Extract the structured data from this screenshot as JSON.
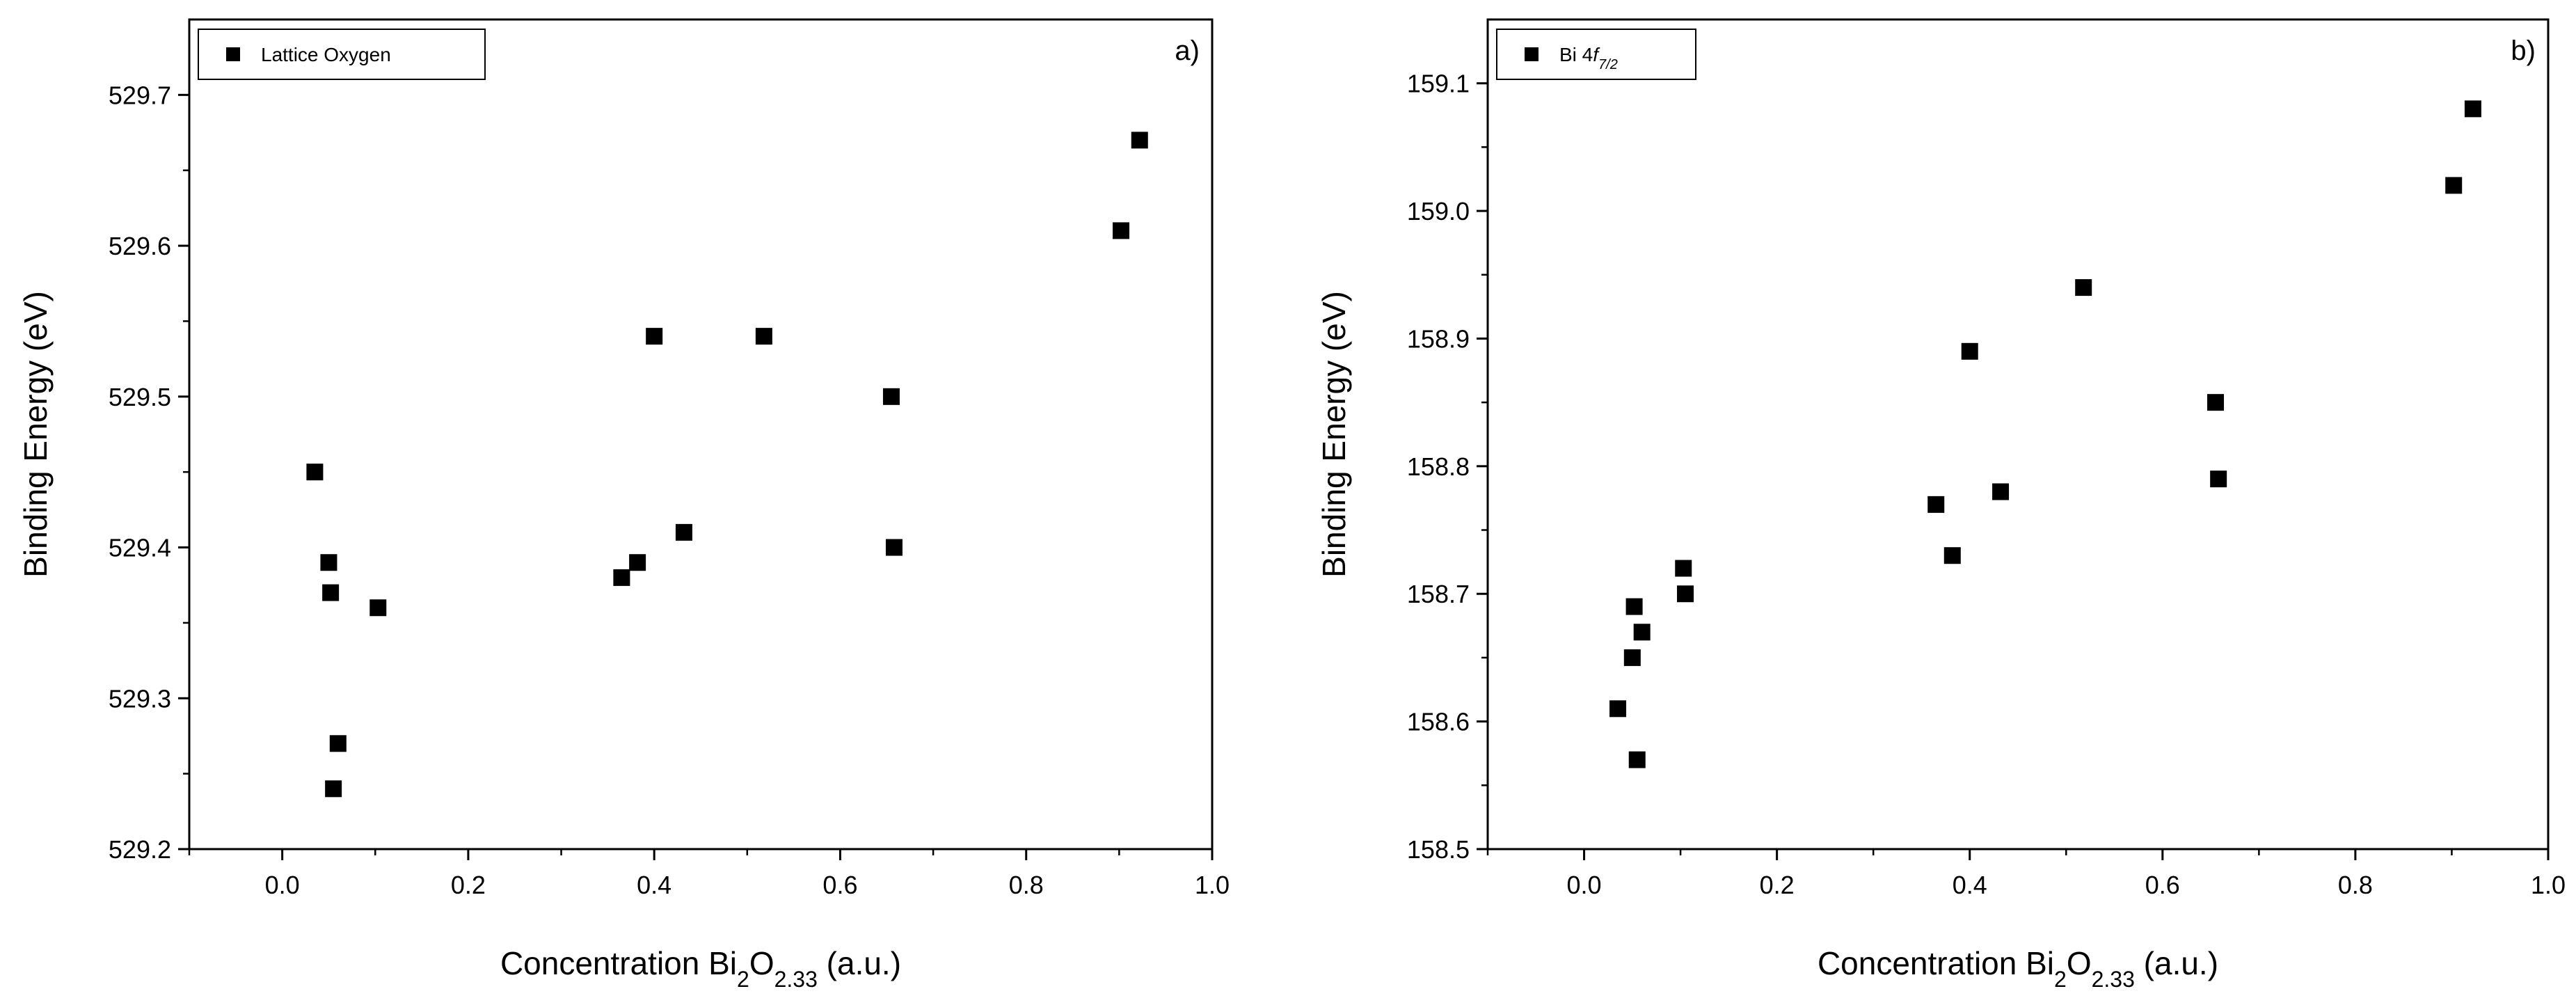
{
  "chart_data": [
    {
      "type": "scatter",
      "panel_label": "a)",
      "series": [
        {
          "name": "Lattice Oxygen",
          "marker": "square",
          "points": [
            {
              "x": 0.035,
              "y": 529.45
            },
            {
              "x": 0.05,
              "y": 529.39
            },
            {
              "x": 0.052,
              "y": 529.37
            },
            {
              "x": 0.06,
              "y": 529.27
            },
            {
              "x": 0.055,
              "y": 529.24
            },
            {
              "x": 0.103,
              "y": 529.36
            },
            {
              "x": 0.365,
              "y": 529.38
            },
            {
              "x": 0.382,
              "y": 529.39
            },
            {
              "x": 0.4,
              "y": 529.54
            },
            {
              "x": 0.432,
              "y": 529.41
            },
            {
              "x": 0.518,
              "y": 529.54
            },
            {
              "x": 0.655,
              "y": 529.5
            },
            {
              "x": 0.658,
              "y": 529.4
            },
            {
              "x": 0.902,
              "y": 529.61
            },
            {
              "x": 0.922,
              "y": 529.67
            }
          ]
        }
      ],
      "legend": [
        {
          "text": "Lattice Oxygen"
        }
      ],
      "legend_position": "top-left",
      "xlabel": {
        "pre": "Concentration Bi",
        "sub1": "2",
        "mid": "O",
        "sub2": "2.33",
        "post": " (a.u.)"
      },
      "ylabel": "Binding Energy (eV)",
      "xlim": [
        -0.1,
        1.0
      ],
      "ylim": [
        529.2,
        529.75
      ],
      "xticks": [
        {
          "v": 0.0,
          "t": "0.0"
        },
        {
          "v": 0.2,
          "t": "0.2"
        },
        {
          "v": 0.4,
          "t": "0.4"
        },
        {
          "v": 0.6,
          "t": "0.6"
        },
        {
          "v": 0.8,
          "t": "0.8"
        },
        {
          "v": 1.0,
          "t": "1.0"
        }
      ],
      "yticks": [
        {
          "v": 529.2,
          "t": "529.2"
        },
        {
          "v": 529.3,
          "t": "529.3"
        },
        {
          "v": 529.4,
          "t": "529.4"
        },
        {
          "v": 529.5,
          "t": "529.5"
        },
        {
          "v": 529.6,
          "t": "529.6"
        },
        {
          "v": 529.7,
          "t": "529.7"
        }
      ],
      "grid": false
    },
    {
      "type": "scatter",
      "panel_label": "b)",
      "series": [
        {
          "name": "Bi 4f7/2",
          "marker": "square",
          "points": [
            {
              "x": 0.035,
              "y": 158.61
            },
            {
              "x": 0.05,
              "y": 158.65
            },
            {
              "x": 0.052,
              "y": 158.69
            },
            {
              "x": 0.06,
              "y": 158.67
            },
            {
              "x": 0.055,
              "y": 158.57
            },
            {
              "x": 0.103,
              "y": 158.72
            },
            {
              "x": 0.105,
              "y": 158.7
            },
            {
              "x": 0.365,
              "y": 158.77
            },
            {
              "x": 0.382,
              "y": 158.73
            },
            {
              "x": 0.4,
              "y": 158.89
            },
            {
              "x": 0.432,
              "y": 158.78
            },
            {
              "x": 0.518,
              "y": 158.94
            },
            {
              "x": 0.655,
              "y": 158.85
            },
            {
              "x": 0.658,
              "y": 158.79
            },
            {
              "x": 0.902,
              "y": 159.02
            },
            {
              "x": 0.922,
              "y": 159.08
            }
          ]
        }
      ],
      "legend": [
        {
          "text": "Bi 4",
          "italic": "f",
          "sub": "7/2"
        }
      ],
      "legend_position": "top-left",
      "xlabel": {
        "pre": "Concentration Bi",
        "sub1": "2",
        "mid": "O",
        "sub2": "2.33",
        "post": " (a.u.)"
      },
      "ylabel": "Binding Energy (eV)",
      "xlim": [
        -0.1,
        1.0
      ],
      "ylim": [
        158.5,
        159.15
      ],
      "xticks": [
        {
          "v": 0.0,
          "t": "0.0"
        },
        {
          "v": 0.2,
          "t": "0.2"
        },
        {
          "v": 0.4,
          "t": "0.4"
        },
        {
          "v": 0.6,
          "t": "0.6"
        },
        {
          "v": 0.8,
          "t": "0.8"
        },
        {
          "v": 1.0,
          "t": "1.0"
        }
      ],
      "yticks": [
        {
          "v": 158.5,
          "t": "158.5"
        },
        {
          "v": 158.6,
          "t": "158.6"
        },
        {
          "v": 158.7,
          "t": "158.7"
        },
        {
          "v": 158.8,
          "t": "158.8"
        },
        {
          "v": 158.9,
          "t": "158.9"
        },
        {
          "v": 159.0,
          "t": "159.0"
        },
        {
          "v": 159.1,
          "t": "159.1"
        }
      ],
      "grid": false
    }
  ]
}
